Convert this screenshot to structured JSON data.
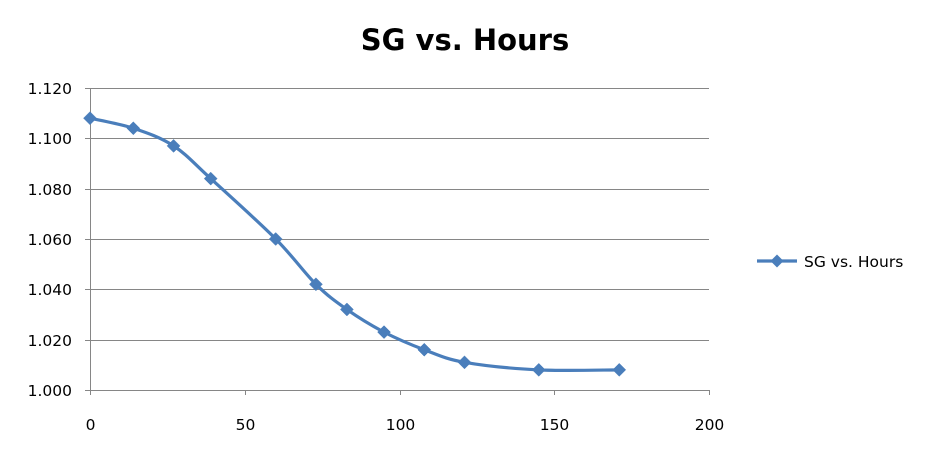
{
  "chart_data": {
    "type": "line",
    "title": "SG vs. Hours",
    "xlabel": "",
    "ylabel": "",
    "xlim": [
      0,
      200
    ],
    "ylim": [
      1.0,
      1.12
    ],
    "x_ticks": [
      0,
      50,
      100,
      150,
      200
    ],
    "x_tick_labels": [
      "0",
      "50",
      "100",
      "150",
      "200"
    ],
    "y_ticks": [
      1.0,
      1.02,
      1.04,
      1.06,
      1.08,
      1.1,
      1.12
    ],
    "y_tick_labels": [
      "1.000",
      "1.020",
      "1.040",
      "1.060",
      "1.080",
      "1.100",
      "1.120"
    ],
    "grid": "horizontal",
    "smooth": true,
    "marker": "diamond",
    "legend_position": "right",
    "series": [
      {
        "name": "SG vs. Hours",
        "color": "#4a7ebb",
        "points": [
          {
            "x": 0,
            "y": 1.108
          },
          {
            "x": 14,
            "y": 1.104
          },
          {
            "x": 27,
            "y": 1.097
          },
          {
            "x": 39,
            "y": 1.084
          },
          {
            "x": 60,
            "y": 1.06
          },
          {
            "x": 73,
            "y": 1.042
          },
          {
            "x": 83,
            "y": 1.032
          },
          {
            "x": 95,
            "y": 1.023
          },
          {
            "x": 108,
            "y": 1.016
          },
          {
            "x": 121,
            "y": 1.011
          },
          {
            "x": 145,
            "y": 1.008
          },
          {
            "x": 171,
            "y": 1.008
          }
        ]
      }
    ]
  }
}
